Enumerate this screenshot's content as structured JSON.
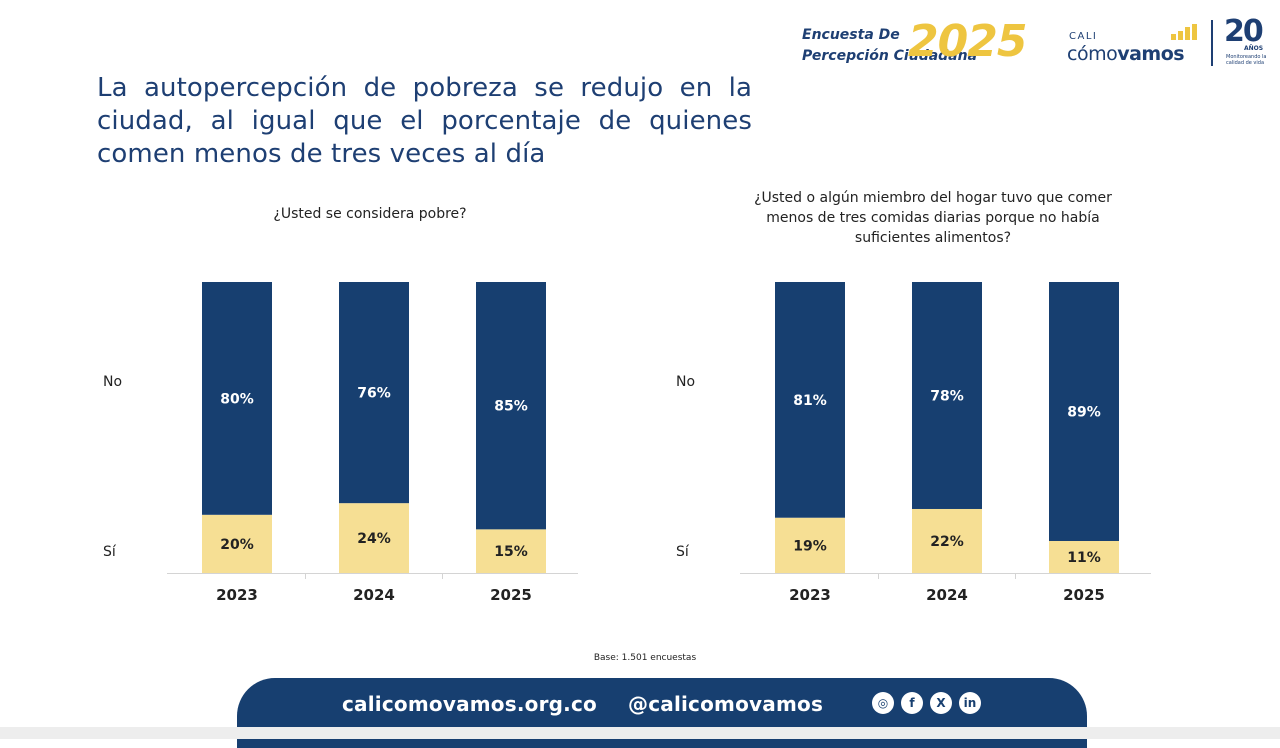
{
  "header": {
    "survey_line1": "Encuesta De",
    "survey_line2": "Percepción Ciudadana",
    "survey_year": "2025",
    "org_small": "CALI",
    "org_big_1": "cómo",
    "org_big_2": "vamos",
    "anniversary_number": "20",
    "anniversary_word": "AÑOS",
    "anniversary_tagline": "Monitoreando la calidad de vida"
  },
  "title": "La autopercepción de pobreza se redujo en la ciudad, al igual que el porcentaje de quienes comen menos de tres veces al día",
  "colors": {
    "no": "#173f70",
    "si": "#f6df94",
    "brand_navy": "#1e3f73",
    "brand_gold": "#eec540"
  },
  "chart_data": [
    {
      "type": "bar",
      "stacked": true,
      "title": "¿Usted se considera pobre?",
      "categories": [
        "2023",
        "2024",
        "2025"
      ],
      "category_labels": [
        "2023",
        "2024",
        "2025"
      ],
      "row_labels": [
        "No",
        "Sí"
      ],
      "series": [
        {
          "name": "Sí",
          "values": [
            20,
            24,
            15
          ],
          "labels": [
            "20%",
            "24%",
            "15%"
          ],
          "color": "#f6df94"
        },
        {
          "name": "No",
          "values": [
            80,
            76,
            85
          ],
          "labels": [
            "80%",
            "76%",
            "85%"
          ],
          "color": "#173f70"
        }
      ],
      "ylim": [
        0,
        100
      ]
    },
    {
      "type": "bar",
      "stacked": true,
      "title": "¿Usted o algún miembro del hogar tuvo que comer menos de tres comidas diarias porque no había suficientes alimentos?",
      "categories": [
        "2023",
        "2024",
        "2025"
      ],
      "category_labels": [
        "2023",
        "2024",
        "2025"
      ],
      "row_labels": [
        "No",
        "Sí"
      ],
      "series": [
        {
          "name": "Sí",
          "values": [
            19,
            22,
            11
          ],
          "labels": [
            "19%",
            "22%",
            "11%"
          ],
          "color": "#f6df94"
        },
        {
          "name": "No",
          "values": [
            81,
            78,
            89
          ],
          "labels": [
            "81%",
            "78%",
            "89%"
          ],
          "color": "#173f70"
        }
      ],
      "ylim": [
        0,
        100
      ]
    }
  ],
  "base_note": "Base: 1.501 encuestas",
  "footer": {
    "website": "calicomovamos.org.co",
    "handle": "@calicomovamos",
    "social_icons": [
      "instagram-icon",
      "facebook-icon",
      "x-icon",
      "linkedin-icon"
    ],
    "social_glyphs": [
      "◎",
      "f",
      "X",
      "in"
    ]
  }
}
